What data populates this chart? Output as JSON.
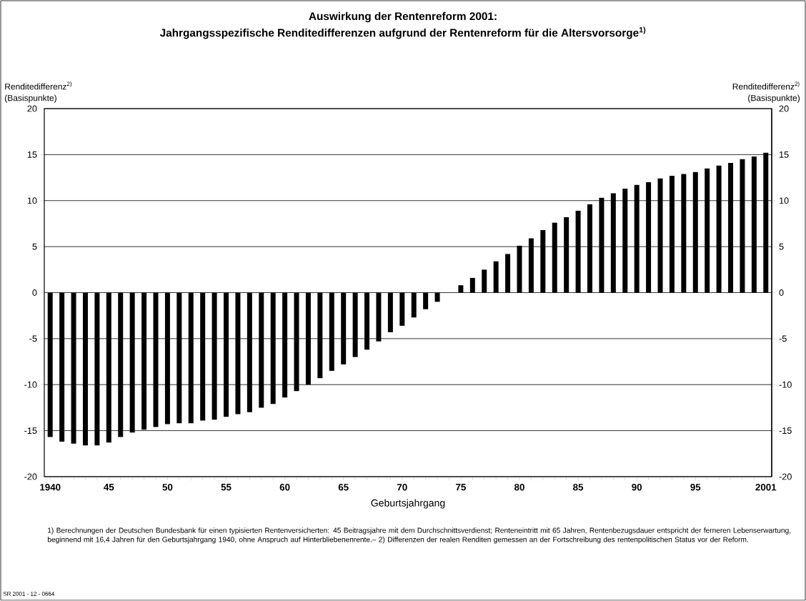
{
  "chart_data": {
    "type": "bar",
    "title": "Auswirkung der Rentenreform 2001:",
    "subtitle": "Jahrgangsspezifische Renditedifferenzen aufgrund der Rentenreform für die Altersvorsorge$^{1)}$",
    "xlabel": "Geburtsjahrgang",
    "ylabel": "Renditedifferenz$^{2)}$ (Basispunkte)",
    "y2label": "Renditedifferenz$^{2)}$ (Basispunkte)",
    "x": [
      1940,
      1941,
      1942,
      1943,
      1944,
      1945,
      1946,
      1947,
      1948,
      1949,
      1950,
      1951,
      1952,
      1953,
      1954,
      1955,
      1956,
      1957,
      1958,
      1959,
      1960,
      1961,
      1962,
      1963,
      1964,
      1965,
      1966,
      1967,
      1968,
      1969,
      1970,
      1971,
      1972,
      1973,
      1974,
      1975,
      1976,
      1977,
      1978,
      1979,
      1980,
      1981,
      1982,
      1983,
      1984,
      1985,
      1986,
      1987,
      1988,
      1989,
      1990,
      1991,
      1992,
      1993,
      1994,
      1995,
      1996,
      1997,
      1998,
      1999,
      2000,
      2001
    ],
    "values": [
      -15.7,
      -16.2,
      -16.4,
      -16.6,
      -16.6,
      -16.3,
      -15.7,
      -15.2,
      -14.9,
      -14.6,
      -14.3,
      -14.2,
      -14.2,
      -13.9,
      -13.8,
      -13.5,
      -13.2,
      -13.0,
      -12.5,
      -12.1,
      -11.4,
      -10.7,
      -10.0,
      -9.3,
      -8.5,
      -7.8,
      -7.0,
      -6.2,
      -5.3,
      -4.3,
      -3.6,
      -2.7,
      -1.8,
      -1.0,
      0,
      0.8,
      1.6,
      2.5,
      3.4,
      4.2,
      5.1,
      5.9,
      6.8,
      7.6,
      8.2,
      8.9,
      9.6,
      10.3,
      10.8,
      11.3,
      11.7,
      12.0,
      12.4,
      12.7,
      12.9,
      13.1,
      13.5,
      13.8,
      14.1,
      14.5,
      14.8,
      15.2
    ],
    "color": "#000000",
    "xlim": [
      1939.5,
      2001.5
    ],
    "xticks": [
      {
        "value": 1940,
        "label": "1940"
      },
      {
        "value": 1941,
        "label": null
      },
      {
        "value": 1942,
        "label": null
      },
      {
        "value": 1943,
        "label": null
      },
      {
        "value": 1944,
        "label": null
      },
      {
        "value": 1945,
        "label": "45"
      },
      {
        "value": 1946,
        "label": null
      },
      {
        "value": 1947,
        "label": null
      },
      {
        "value": 1948,
        "label": null
      },
      {
        "value": 1949,
        "label": null
      },
      {
        "value": 1950,
        "label": "50"
      },
      {
        "value": 1951,
        "label": null
      },
      {
        "value": 1952,
        "label": null
      },
      {
        "value": 1953,
        "label": null
      },
      {
        "value": 1954,
        "label": null
      },
      {
        "value": 1955,
        "label": "55"
      },
      {
        "value": 1956,
        "label": null
      },
      {
        "value": 1957,
        "label": null
      },
      {
        "value": 1958,
        "label": null
      },
      {
        "value": 1959,
        "label": null
      },
      {
        "value": 1960,
        "label": "60"
      },
      {
        "value": 1961,
        "label": null
      },
      {
        "value": 1962,
        "label": null
      },
      {
        "value": 1963,
        "label": null
      },
      {
        "value": 1964,
        "label": null
      },
      {
        "value": 1965,
        "label": "65"
      },
      {
        "value": 1966,
        "label": null
      },
      {
        "value": 1967,
        "label": null
      },
      {
        "value": 1968,
        "label": null
      },
      {
        "value": 1969,
        "label": null
      },
      {
        "value": 1970,
        "label": "70"
      },
      {
        "value": 1971,
        "label": null
      },
      {
        "value": 1972,
        "label": null
      },
      {
        "value": 1973,
        "label": null
      },
      {
        "value": 1974,
        "label": null
      },
      {
        "value": 1975,
        "label": "75"
      },
      {
        "value": 1976,
        "label": null
      },
      {
        "value": 1977,
        "label": null
      },
      {
        "value": 1978,
        "label": null
      },
      {
        "value": 1979,
        "label": null
      },
      {
        "value": 1980,
        "label": "80"
      },
      {
        "value": 1981,
        "label": null
      },
      {
        "value": 1982,
        "label": null
      },
      {
        "value": 1983,
        "label": null
      },
      {
        "value": 1984,
        "label": null
      },
      {
        "value": 1985,
        "label": "85"
      },
      {
        "value": 1986,
        "label": null
      },
      {
        "value": 1987,
        "label": null
      },
      {
        "value": 1988,
        "label": null
      },
      {
        "value": 1989,
        "label": null
      },
      {
        "value": 1990,
        "label": "90"
      },
      {
        "value": 1991,
        "label": null
      },
      {
        "value": 1992,
        "label": null
      },
      {
        "value": 1993,
        "label": null
      },
      {
        "value": 1994,
        "label": null
      },
      {
        "value": 1995,
        "label": "95"
      },
      {
        "value": 1996,
        "label": null
      },
      {
        "value": 1997,
        "label": null
      },
      {
        "value": 1998,
        "label": null
      },
      {
        "value": 1999,
        "label": null
      },
      {
        "value": 2000,
        "label": null
      },
      {
        "value": 2001,
        "label": "2001"
      }
    ],
    "ylim": [
      -20,
      20
    ],
    "yticks": [
      -20,
      -15,
      -10,
      -5,
      0,
      5,
      10,
      15,
      20
    ],
    "y2lim": [
      -20,
      20
    ],
    "y2ticks": [
      -20,
      -15,
      -10,
      -5,
      0,
      5,
      10,
      15,
      20
    ],
    "grid": "y",
    "annotations": [
      "1) Berechnungen der Deutschen Bundesbank für einen typisierten Rentenversicherten: 45 Beitragsjahre mit dem Durchschnittsverdienst; Renteneintritt mit 65 Jahren, Rentenbezugsdauer entspricht der ferneren Lebenserwartung, beginnend mit 16,4 Jahren für den Geburtsjahrgang 1940, ohne Anspruch auf Hinterbliebenenrente.– 2) Differenzen der realen Renditen gemessen an der Fortschreibung des rentenpolitischen Status vor der Reform.",
      "SR 2001 - 12 - 0664"
    ]
  }
}
